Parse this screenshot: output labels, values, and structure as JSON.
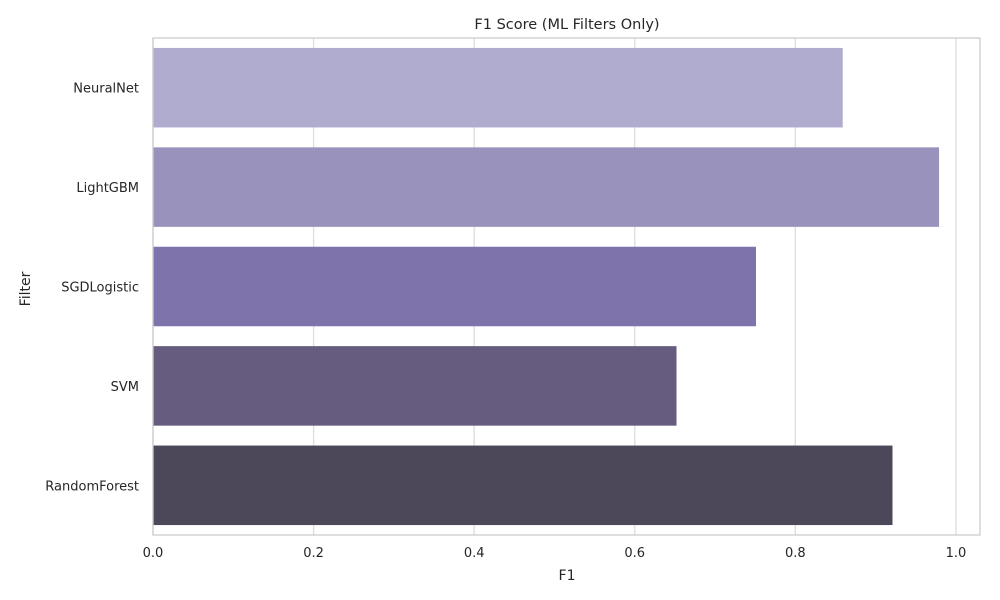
{
  "chart_data": {
    "type": "bar",
    "orientation": "horizontal",
    "title": "F1 Score (ML Filters Only)",
    "xlabel": "F1",
    "ylabel": "Filter",
    "categories": [
      "NeuralNet",
      "LightGBM",
      "SGDLogistic",
      "SVM",
      "RandomForest"
    ],
    "values": [
      0.859,
      0.979,
      0.751,
      0.652,
      0.921
    ],
    "xlim": [
      0.0,
      1.03
    ],
    "xticks": [
      0.0,
      0.2,
      0.4,
      0.6,
      0.8,
      1.0
    ],
    "xtick_labels": [
      "0.0",
      "0.2",
      "0.4",
      "0.6",
      "0.8",
      "1.0"
    ],
    "colors": [
      "#b0acd0",
      "#9892bd",
      "#7e74ab",
      "#665c80",
      "#4c485a"
    ],
    "grid": true,
    "grid_color": "#dddddd",
    "frame_color": "#cccccc",
    "legend": false
  }
}
